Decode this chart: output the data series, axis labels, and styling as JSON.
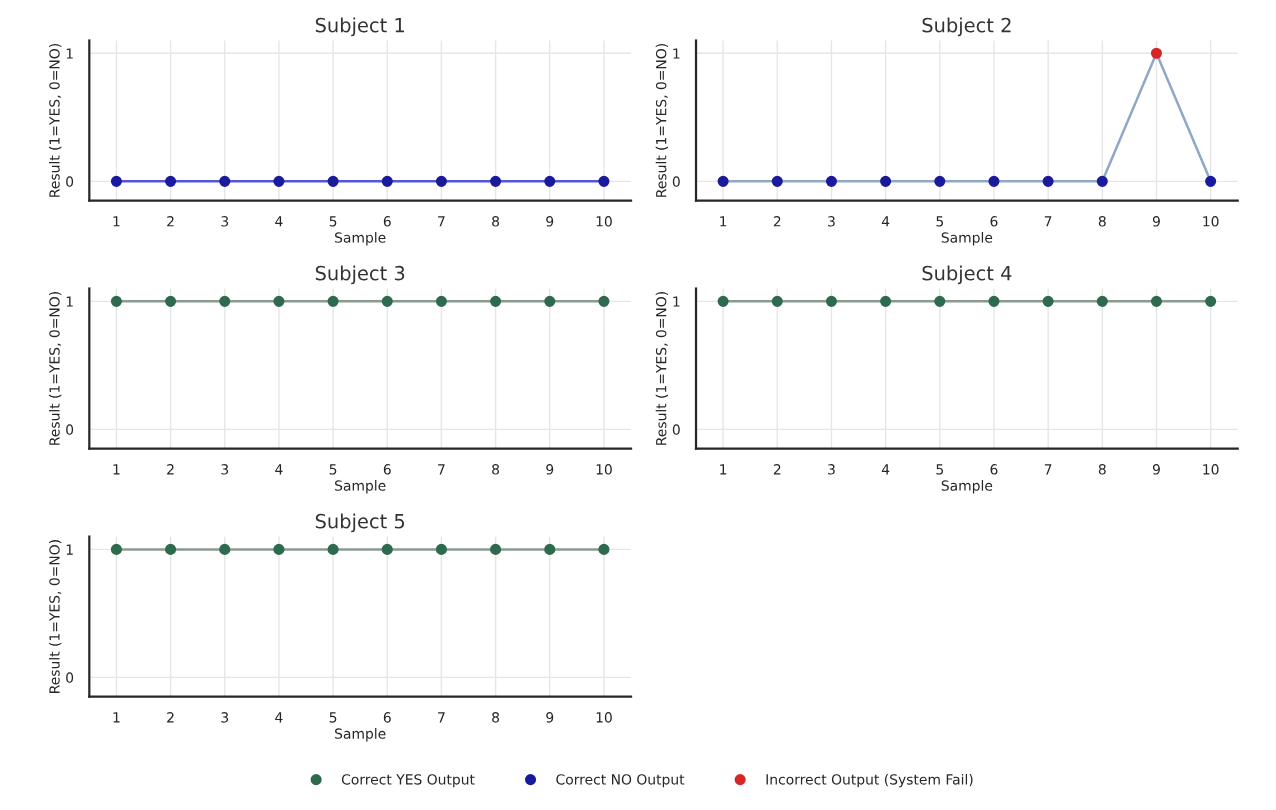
{
  "chart_data": [
    {
      "type": "line",
      "title": "Subject 1",
      "xlabel": "Sample",
      "ylabel": "Result (1=YES, 0=NO)",
      "x": [
        1,
        2,
        3,
        4,
        5,
        6,
        7,
        8,
        9,
        10
      ],
      "xlim": [
        0.5,
        10.5
      ],
      "xticks": [
        1,
        2,
        3,
        4,
        5,
        6,
        7,
        8,
        9,
        10
      ],
      "ylim": [
        -0.15,
        1.1
      ],
      "yticks": [
        0,
        1
      ],
      "grid": true,
      "legend": "bottom",
      "series": [
        {
          "color": "#5555d8",
          "marker": "none",
          "values": [
            0,
            0,
            0,
            0,
            0,
            0,
            0,
            0,
            0,
            0
          ]
        },
        {
          "type": "scatter",
          "name": "Correct YES Output",
          "color": "#2e6b4e",
          "marker": "circle",
          "values": [
            null,
            null,
            null,
            null,
            null,
            null,
            null,
            null,
            null,
            null
          ]
        },
        {
          "type": "scatter",
          "name": "Correct NO Output",
          "color": "#1a1a9c",
          "marker": "circle",
          "values": [
            0,
            0,
            0,
            0,
            0,
            0,
            0,
            0,
            0,
            0
          ]
        },
        {
          "type": "scatter",
          "name": "Incorrect Output (System Fail)",
          "color": "#d62728",
          "marker": "circle",
          "values": [
            null,
            null,
            null,
            null,
            null,
            null,
            null,
            null,
            null,
            null
          ]
        }
      ]
    },
    {
      "type": "line",
      "title": "Subject 2",
      "xlabel": "Sample",
      "ylabel": "Result (1=YES, 0=NO)",
      "x": [
        1,
        2,
        3,
        4,
        5,
        6,
        7,
        8,
        9,
        10
      ],
      "xlim": [
        0.5,
        10.5
      ],
      "xticks": [
        1,
        2,
        3,
        4,
        5,
        6,
        7,
        8,
        9,
        10
      ],
      "ylim": [
        -0.15,
        1.1
      ],
      "yticks": [
        0,
        1
      ],
      "grid": true,
      "series": [
        {
          "color": "#8fa8c8",
          "marker": "none",
          "values": [
            0,
            0,
            0,
            0,
            0,
            0,
            0,
            0,
            1,
            0
          ]
        },
        {
          "type": "scatter",
          "color": "#1a1a9c",
          "marker": "circle",
          "values": [
            0,
            0,
            0,
            0,
            0,
            0,
            0,
            0,
            null,
            0
          ]
        },
        {
          "type": "scatter",
          "color": "#d62728",
          "marker": "circle",
          "values": [
            null,
            null,
            null,
            null,
            null,
            null,
            null,
            null,
            1,
            null
          ]
        }
      ]
    },
    {
      "type": "line",
      "title": "Subject 3",
      "xlabel": "Sample",
      "ylabel": "Result (1=YES, 0=NO)",
      "x": [
        1,
        2,
        3,
        4,
        5,
        6,
        7,
        8,
        9,
        10
      ],
      "xlim": [
        0.5,
        10.5
      ],
      "xticks": [
        1,
        2,
        3,
        4,
        5,
        6,
        7,
        8,
        9,
        10
      ],
      "ylim": [
        -0.15,
        1.1
      ],
      "yticks": [
        0,
        1
      ],
      "grid": true,
      "series": [
        {
          "color": "#8a9a90",
          "marker": "none",
          "values": [
            1,
            1,
            1,
            1,
            1,
            1,
            1,
            1,
            1,
            1
          ]
        },
        {
          "type": "scatter",
          "color": "#2e6b4e",
          "marker": "circle",
          "values": [
            1,
            1,
            1,
            1,
            1,
            1,
            1,
            1,
            1,
            1
          ]
        }
      ]
    },
    {
      "type": "line",
      "title": "Subject 4",
      "xlabel": "Sample",
      "ylabel": "Result (1=YES, 0=NO)",
      "x": [
        1,
        2,
        3,
        4,
        5,
        6,
        7,
        8,
        9,
        10
      ],
      "xlim": [
        0.5,
        10.5
      ],
      "xticks": [
        1,
        2,
        3,
        4,
        5,
        6,
        7,
        8,
        9,
        10
      ],
      "ylim": [
        -0.15,
        1.1
      ],
      "yticks": [
        0,
        1
      ],
      "grid": true,
      "series": [
        {
          "color": "#8a9a90",
          "marker": "none",
          "values": [
            1,
            1,
            1,
            1,
            1,
            1,
            1,
            1,
            1,
            1
          ]
        },
        {
          "type": "scatter",
          "color": "#2e6b4e",
          "marker": "circle",
          "values": [
            1,
            1,
            1,
            1,
            1,
            1,
            1,
            1,
            1,
            1
          ]
        }
      ]
    },
    {
      "type": "line",
      "title": "Subject 5",
      "xlabel": "Sample",
      "ylabel": "Result (1=YES, 0=NO)",
      "x": [
        1,
        2,
        3,
        4,
        5,
        6,
        7,
        8,
        9,
        10
      ],
      "xlim": [
        0.5,
        10.5
      ],
      "xticks": [
        1,
        2,
        3,
        4,
        5,
        6,
        7,
        8,
        9,
        10
      ],
      "ylim": [
        -0.15,
        1.1
      ],
      "yticks": [
        0,
        1
      ],
      "grid": true,
      "series": [
        {
          "color": "#8a9a90",
          "marker": "none",
          "values": [
            1,
            1,
            1,
            1,
            1,
            1,
            1,
            1,
            1,
            1
          ]
        },
        {
          "type": "scatter",
          "color": "#2e6b4e",
          "marker": "circle",
          "values": [
            1,
            1,
            1,
            1,
            1,
            1,
            1,
            1,
            1,
            1
          ]
        }
      ]
    }
  ]
}
